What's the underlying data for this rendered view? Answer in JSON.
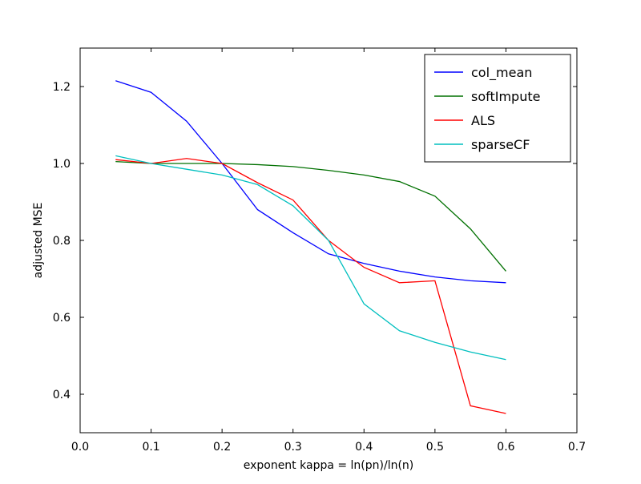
{
  "figure": {
    "background": "#ffffff",
    "plot_background": "#ffffff",
    "frame_color": "#000000"
  },
  "chart_data": {
    "type": "line",
    "title": "",
    "xlabel": "exponent kappa = ln(pn)/ln(n)",
    "ylabel": "adjusted MSE",
    "xlim": [
      0.0,
      0.7
    ],
    "ylim": [
      0.3,
      1.3
    ],
    "xticks": [
      0.0,
      0.1,
      0.2,
      0.3,
      0.4,
      0.5,
      0.6,
      0.7
    ],
    "yticks": [
      0.4,
      0.6,
      0.8,
      1.0,
      1.2
    ],
    "grid": false,
    "legend_position": "upper right",
    "x": [
      0.05,
      0.1,
      0.15,
      0.2,
      0.25,
      0.3,
      0.35,
      0.4,
      0.45,
      0.5,
      0.55,
      0.6
    ],
    "series": [
      {
        "name": "col_mean",
        "color": "#0000ff",
        "values": [
          1.215,
          1.185,
          1.11,
          1.0,
          0.88,
          0.82,
          0.765,
          0.74,
          0.72,
          0.705,
          0.695,
          0.69
        ]
      },
      {
        "name": "softImpute",
        "color": "#007000",
        "values": [
          1.005,
          1.0,
          1.0,
          1.0,
          0.997,
          0.992,
          0.982,
          0.97,
          0.953,
          0.915,
          0.83,
          0.72
        ]
      },
      {
        "name": "ALS",
        "color": "#ff0000",
        "values": [
          1.01,
          1.0,
          1.013,
          1.0,
          0.95,
          0.905,
          0.8,
          0.73,
          0.69,
          0.695,
          0.37,
          0.35
        ]
      },
      {
        "name": "sparseCF",
        "color": "#00bfbf",
        "values": [
          1.02,
          1.0,
          0.985,
          0.97,
          0.945,
          0.89,
          0.8,
          0.635,
          0.565,
          0.535,
          0.51,
          0.49
        ]
      }
    ]
  }
}
